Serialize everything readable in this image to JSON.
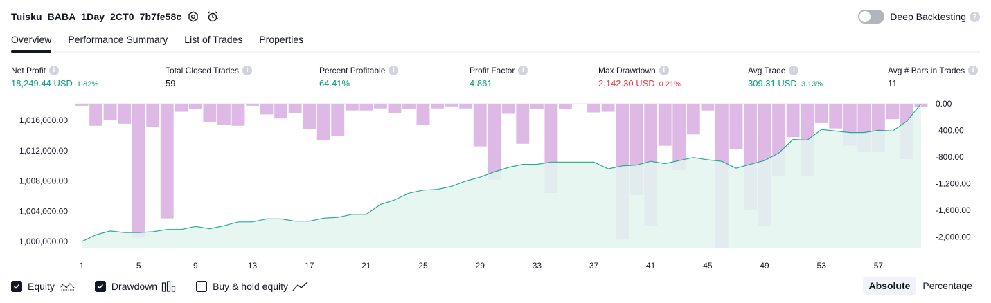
{
  "header": {
    "strategy_title": "Tuisku_BABA_1Day_2CT0_7b7fe58c",
    "deep_backtesting_label": "Deep Backtesting",
    "deep_backtesting_enabled": false
  },
  "tabs": [
    {
      "label": "Overview",
      "active": true
    },
    {
      "label": "Performance Summary",
      "active": false
    },
    {
      "label": "List of Trades",
      "active": false
    },
    {
      "label": "Properties",
      "active": false
    }
  ],
  "metrics": [
    {
      "label": "Net Profit",
      "value": "18,249.44 USD",
      "pct": "1.82%",
      "color": "#089981"
    },
    {
      "label": "Total Closed Trades",
      "value": "59",
      "pct": "",
      "color": "#131722"
    },
    {
      "label": "Percent Profitable",
      "value": "64.41%",
      "pct": "",
      "color": "#089981"
    },
    {
      "label": "Profit Factor",
      "value": "4.861",
      "pct": "",
      "color": "#089981"
    },
    {
      "label": "Max Drawdown",
      "value": "2,142.30 USD",
      "pct": "0.21%",
      "color": "#f23645"
    },
    {
      "label": "Avg Trade",
      "value": "309.31 USD",
      "pct": "3.13%",
      "color": "#089981"
    },
    {
      "label": "Avg # Bars in Trades",
      "value": "11",
      "pct": "",
      "color": "#131722"
    }
  ],
  "chart_data": {
    "type": "area",
    "left_axis": {
      "ticks": [
        "1,016,000.00",
        "1,012,000.00",
        "1,008,000.00",
        "1,004,000.00",
        "1,000,000.00"
      ],
      "values": [
        1016000,
        1012000,
        1008000,
        1004000,
        1000000
      ],
      "range": [
        999200,
        1018200
      ]
    },
    "right_axis": {
      "ticks": [
        "0.00",
        "-400.00",
        "-800.00",
        "-1,200.00",
        "-1,600.00",
        "-2,000.00"
      ],
      "values": [
        0,
        -400,
        -800,
        -1200,
        -1600,
        -2000
      ],
      "range": [
        -2160,
        0
      ]
    },
    "x_ticks": [
      "1",
      "5",
      "9",
      "13",
      "17",
      "21",
      "25",
      "29",
      "33",
      "37",
      "41",
      "45",
      "49",
      "53",
      "57"
    ],
    "x_tick_values": [
      1,
      5,
      9,
      13,
      17,
      21,
      25,
      29,
      33,
      37,
      41,
      45,
      49,
      53,
      57
    ],
    "x_range": [
      1,
      60
    ],
    "series": [
      {
        "name": "Equity",
        "color": "#22ab94",
        "fill": "#e3f4ef",
        "x": [
          1,
          2,
          3,
          4,
          5,
          6,
          7,
          8,
          9,
          10,
          11,
          12,
          13,
          14,
          15,
          16,
          17,
          18,
          19,
          20,
          21,
          22,
          23,
          24,
          25,
          26,
          27,
          28,
          29,
          30,
          31,
          32,
          33,
          34,
          35,
          36,
          37,
          38,
          39,
          40,
          41,
          42,
          43,
          44,
          45,
          46,
          47,
          48,
          49,
          50,
          51,
          52,
          53,
          54,
          55,
          56,
          57,
          58,
          59,
          60
        ],
        "values": [
          1000000,
          1000900,
          1001400,
          1001200,
          1001200,
          1001300,
          1001600,
          1001600,
          1002000,
          1001700,
          1002100,
          1002600,
          1002600,
          1003000,
          1003000,
          1002700,
          1002700,
          1003100,
          1003200,
          1003600,
          1003600,
          1004900,
          1005500,
          1006400,
          1006800,
          1006900,
          1007300,
          1008000,
          1008500,
          1009200,
          1009800,
          1010200,
          1010200,
          1010500,
          1010500,
          1010500,
          1010500,
          1009600,
          1010000,
          1010100,
          1010600,
          1010300,
          1010700,
          1011100,
          1010800,
          1010600,
          1009700,
          1010200,
          1010700,
          1011700,
          1013500,
          1013400,
          1014800,
          1014600,
          1014400,
          1014400,
          1014700,
          1014600,
          1015900,
          1018200
        ]
      },
      {
        "name": "Drawdown",
        "color": "#ce93d8",
        "x": [
          1,
          2,
          3,
          4,
          5,
          6,
          7,
          8,
          9,
          10,
          11,
          12,
          13,
          14,
          15,
          16,
          17,
          18,
          19,
          20,
          21,
          22,
          23,
          24,
          25,
          26,
          27,
          28,
          29,
          30,
          31,
          32,
          33,
          34,
          35,
          36,
          37,
          38,
          39,
          40,
          41,
          42,
          43,
          44,
          45,
          46,
          47,
          48,
          49,
          50,
          51,
          52,
          53,
          54,
          55,
          56,
          57,
          58,
          59,
          60
        ],
        "values": [
          -30,
          -330,
          -250,
          -300,
          -2010,
          -350,
          -1720,
          -120,
          -80,
          -280,
          -320,
          -330,
          -30,
          -160,
          -220,
          -140,
          -380,
          -550,
          -480,
          -100,
          -100,
          -70,
          -140,
          -80,
          -320,
          -70,
          -40,
          -70,
          -640,
          -1140,
          -150,
          -600,
          -80,
          -1340,
          -80,
          0,
          -130,
          -120,
          -2040,
          -1370,
          -1830,
          -630,
          -1000,
          -460,
          -100,
          -2160,
          -680,
          -1600,
          -1840,
          -1090,
          -500,
          -1090,
          -290,
          -370,
          -630,
          -720,
          -720,
          -230,
          -830,
          -50
        ]
      },
      {
        "name": "Buy & hold equity",
        "visible": false
      }
    ]
  },
  "footer": {
    "legend": [
      {
        "label": "Equity",
        "checked": true,
        "icon": "equity-wave-icon"
      },
      {
        "label": "Drawdown",
        "checked": true,
        "icon": "drawdown-bars-icon"
      },
      {
        "label": "Buy & hold equity",
        "checked": false,
        "icon": "buy-hold-line-icon"
      }
    ],
    "modes": [
      {
        "label": "Absolute",
        "active": true
      },
      {
        "label": "Percentage",
        "active": false
      }
    ]
  }
}
